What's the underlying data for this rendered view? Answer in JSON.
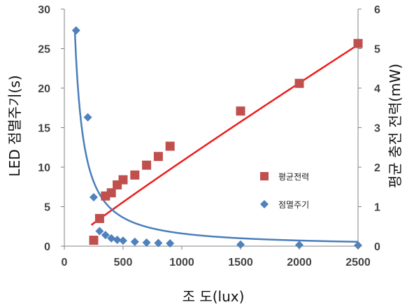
{
  "chart_data": {
    "type": "scatter",
    "title": "",
    "xlabel": "조 도(lux)",
    "ylabel_left": "LED 점멸주기(s)",
    "ylabel_right": "평균 충전 전력(mW)",
    "xlim": [
      0,
      2500
    ],
    "ylim_left": [
      0,
      30
    ],
    "ylim_right": [
      0,
      6
    ],
    "x_ticks": [
      "0",
      "500",
      "1000",
      "1500",
      "2000",
      "2500"
    ],
    "y_left_ticks": [
      "0",
      "5",
      "10",
      "15",
      "20",
      "25",
      "30"
    ],
    "y_right_ticks": [
      "0",
      "1",
      "2",
      "3",
      "4",
      "5",
      "6"
    ],
    "grid": false,
    "legend_position": "center-right",
    "series": [
      {
        "name": "평균전력",
        "axis": "right",
        "marker": "square",
        "color": "#c0504d",
        "points": [
          {
            "x": 250,
            "y": 0.15
          },
          {
            "x": 300,
            "y": 0.7
          },
          {
            "x": 350,
            "y": 1.27
          },
          {
            "x": 400,
            "y": 1.35
          },
          {
            "x": 450,
            "y": 1.55
          },
          {
            "x": 500,
            "y": 1.68
          },
          {
            "x": 600,
            "y": 1.8
          },
          {
            "x": 700,
            "y": 2.05
          },
          {
            "x": 800,
            "y": 2.27
          },
          {
            "x": 900,
            "y": 2.53
          },
          {
            "x": 1500,
            "y": 3.42
          },
          {
            "x": 2000,
            "y": 4.12
          },
          {
            "x": 2500,
            "y": 5.13
          }
        ]
      },
      {
        "name": "점멸주기",
        "axis": "left",
        "marker": "diamond",
        "color": "#4f81bd",
        "points": [
          {
            "x": 100,
            "y": 27.3
          },
          {
            "x": 200,
            "y": 16.3
          },
          {
            "x": 250,
            "y": 6.2
          },
          {
            "x": 300,
            "y": 1.9
          },
          {
            "x": 350,
            "y": 1.4
          },
          {
            "x": 400,
            "y": 1.0
          },
          {
            "x": 450,
            "y": 0.8
          },
          {
            "x": 500,
            "y": 0.7
          },
          {
            "x": 600,
            "y": 0.55
          },
          {
            "x": 700,
            "y": 0.45
          },
          {
            "x": 800,
            "y": 0.4
          },
          {
            "x": 900,
            "y": 0.35
          },
          {
            "x": 1500,
            "y": 0.2
          },
          {
            "x": 2000,
            "y": 0.15
          },
          {
            "x": 2500,
            "y": 0.1
          }
        ]
      }
    ],
    "trendlines": [
      {
        "series": "평균전력",
        "axis": "right",
        "kind": "power",
        "a": 0.00316,
        "b": 0.944,
        "x_start": 230,
        "x_end": 2500,
        "color": "#ee1c1c"
      },
      {
        "series": "점멸주기",
        "axis": "left",
        "kind": "power",
        "a": 5200,
        "b": -1.17,
        "x_start": 55,
        "x_end": 2500,
        "color": "#4a7ebb"
      }
    ]
  }
}
